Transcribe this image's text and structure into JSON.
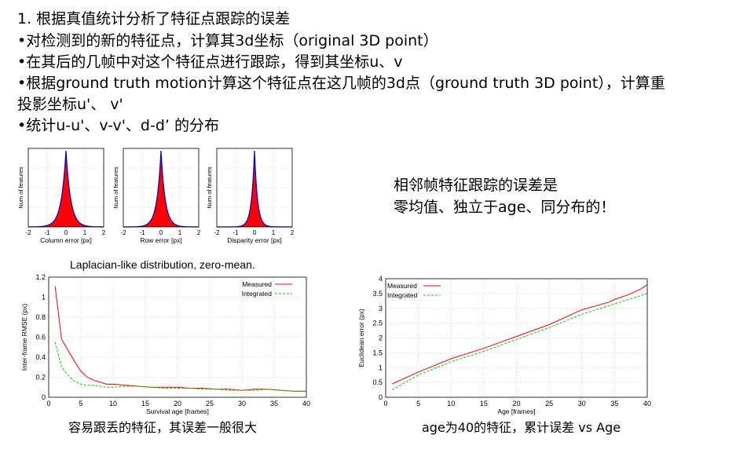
{
  "text": {
    "line1": "1. 根据真值统计分析了特征点跟踪的误差",
    "line2": "•对检测到的新的特征点，计算其3d坐标（original 3D point）",
    "line3": "•在其后的几帧中对这个特征点进行跟踪，得到其坐标u、v",
    "line4": "•根据ground truth motion计算这个特征点在这几帧的3d点（ground truth 3D point），计算重",
    "line5": "投影坐标u'、 v'",
    "line6": "•统计u-u'、v-v'、d-d’ 的分布",
    "side1": "相邻帧特征跟踪的误差是",
    "side2": "零均值、独立于age、同分布的！",
    "laplace_caption": "Laplacian-like distribution, zero-mean.",
    "caption_left": "容易跟丢的特征，其误差一般很大",
    "caption_right": "age为40的特征，累计误差 vs Age"
  },
  "colors": {
    "measured": "#ff0000",
    "integrated": "#00cc00",
    "fill": "#ff0000",
    "envelope": "#0000cc"
  },
  "chart_data": [
    {
      "type": "area",
      "xlabel": "Column error [px]",
      "ylabel": "Num of features",
      "xlim": [
        -2,
        2
      ],
      "xticks": [
        "-2",
        "-1",
        "0",
        "1",
        "2"
      ],
      "grid": true,
      "shape": "laplacian",
      "center": 0,
      "scale": 0.25
    },
    {
      "type": "area",
      "xlabel": "Row error [px]",
      "ylabel": "Num of features",
      "xlim": [
        -2,
        2
      ],
      "xticks": [
        "-2",
        "-1",
        "0",
        "1",
        "2"
      ],
      "grid": true,
      "shape": "laplacian",
      "center": 0,
      "scale": 0.22
    },
    {
      "type": "area",
      "xlabel": "Disparity error [px]",
      "ylabel": "Num of features",
      "xlim": [
        -2,
        2
      ],
      "xticks": [
        "-2",
        "-1",
        "0",
        "1",
        "2"
      ],
      "grid": true,
      "shape": "laplacian",
      "center": 0,
      "scale": 0.16
    },
    {
      "type": "line",
      "xlabel": "Survival age [frames]",
      "ylabel": "Inter-frame RMSE (px)",
      "xlim": [
        0,
        40
      ],
      "ylim": [
        0,
        1.2
      ],
      "xticks": [
        0,
        5,
        10,
        15,
        20,
        25,
        30,
        35,
        40
      ],
      "yticks": [
        0,
        0.2,
        0.4,
        0.6,
        0.8,
        1,
        1.2
      ],
      "legend": "top-right",
      "grid": true,
      "series": [
        {
          "name": "Measured",
          "x": [
            1,
            2,
            3,
            4,
            5,
            6,
            7,
            8,
            9,
            10,
            12,
            14,
            16,
            18,
            20,
            22,
            24,
            26,
            28,
            30,
            32,
            34,
            36,
            38,
            40
          ],
          "y": [
            1.11,
            0.58,
            0.47,
            0.36,
            0.26,
            0.2,
            0.17,
            0.15,
            0.13,
            0.13,
            0.12,
            0.11,
            0.1,
            0.1,
            0.1,
            0.09,
            0.09,
            0.08,
            0.08,
            0.07,
            0.08,
            0.08,
            0.07,
            0.06,
            0.06
          ]
        },
        {
          "name": "Integrated",
          "x": [
            1,
            2,
            3,
            4,
            5,
            6,
            7,
            8,
            9,
            10,
            12,
            14,
            16,
            18,
            20,
            22,
            24,
            26,
            28,
            30,
            32,
            34,
            36,
            38,
            40
          ],
          "y": [
            0.55,
            0.3,
            0.22,
            0.16,
            0.13,
            0.12,
            0.12,
            0.11,
            0.1,
            0.1,
            0.11,
            0.11,
            0.1,
            0.09,
            0.09,
            0.09,
            0.08,
            0.08,
            0.07,
            0.07,
            0.07,
            0.08,
            0.07,
            0.06,
            0.06
          ]
        }
      ]
    },
    {
      "type": "line",
      "xlabel": "Age [frames]",
      "ylabel": "Euclidean error (px)",
      "xlim": [
        0,
        40
      ],
      "ylim": [
        0,
        4
      ],
      "xticks": [
        0,
        5,
        10,
        15,
        20,
        25,
        30,
        35,
        40
      ],
      "yticks": [
        0,
        0.5,
        1,
        1.5,
        2,
        2.5,
        3,
        3.5,
        4
      ],
      "legend": "top-left",
      "grid": true,
      "series": [
        {
          "name": "Measured",
          "x": [
            1,
            5,
            10,
            15,
            20,
            25,
            30,
            34,
            35,
            37,
            39,
            40
          ],
          "y": [
            0.45,
            0.85,
            1.3,
            1.65,
            2.05,
            2.45,
            2.95,
            3.2,
            3.3,
            3.45,
            3.65,
            3.8
          ]
        },
        {
          "name": "Integrated",
          "x": [
            1,
            5,
            10,
            15,
            20,
            25,
            30,
            35,
            40
          ],
          "y": [
            0.25,
            0.75,
            1.2,
            1.55,
            1.95,
            2.35,
            2.8,
            3.15,
            3.5
          ]
        }
      ]
    }
  ]
}
